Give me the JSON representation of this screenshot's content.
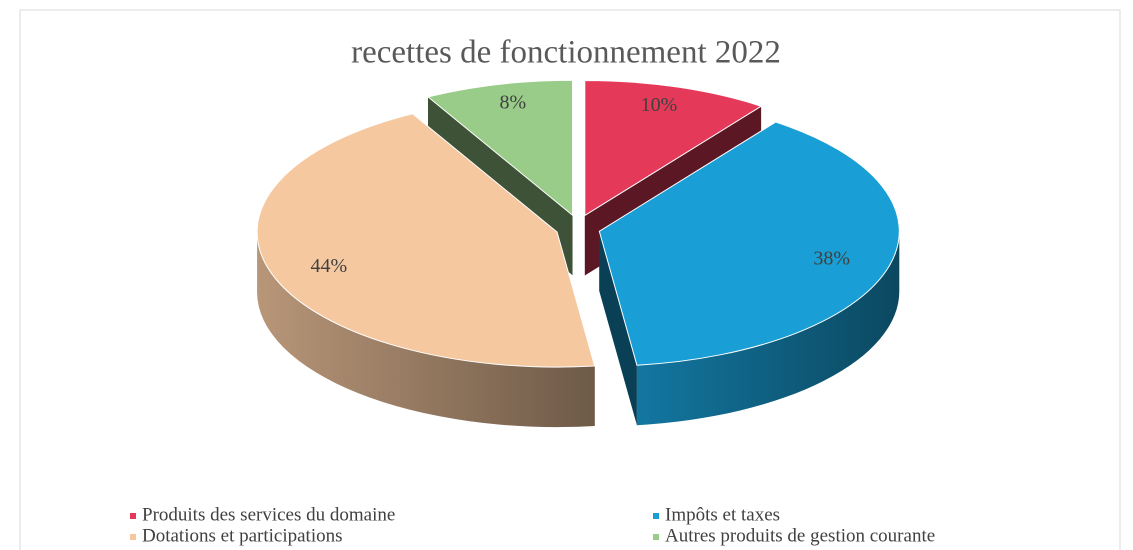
{
  "chart_data": {
    "type": "pie3d",
    "title": "recettes de fonctionnement 2022",
    "categories": [
      "Produits des services du domaine",
      "Impôts et taxes",
      "Dotations et participations",
      "Autres produits de gestion courante"
    ],
    "values": [
      10,
      38,
      44,
      8
    ],
    "value_labels": [
      "10%",
      "38%",
      "44%",
      "8%"
    ],
    "colors": [
      "#e5395a",
      "#199fd6",
      "#f5c8a0",
      "#99cc88"
    ],
    "legend": "bottom"
  }
}
